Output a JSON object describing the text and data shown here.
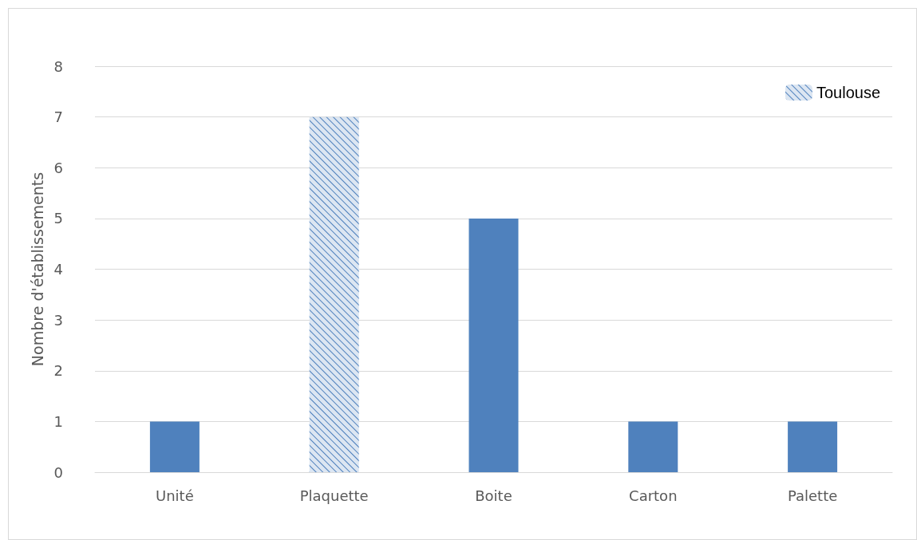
{
  "chart_data": {
    "type": "bar",
    "ylabel": "Nombre d'établissements",
    "categories": [
      "Unité",
      "Plaquette",
      "Boite",
      "Carton",
      "Palette"
    ],
    "series": [
      {
        "name": "Toulouse",
        "color": "#4f81bd",
        "values": [
          1,
          7,
          5,
          1,
          1
        ],
        "colors": [
          "#4f81bd",
          "#dce6f2",
          "#4f81bd",
          "#4f81bd",
          "#4f81bd"
        ]
      }
    ],
    "ylim": [
      0,
      8
    ],
    "yticks": [
      0,
      1,
      2,
      3,
      4,
      5,
      6,
      7,
      8
    ],
    "grid": "y",
    "legend": "top right"
  }
}
